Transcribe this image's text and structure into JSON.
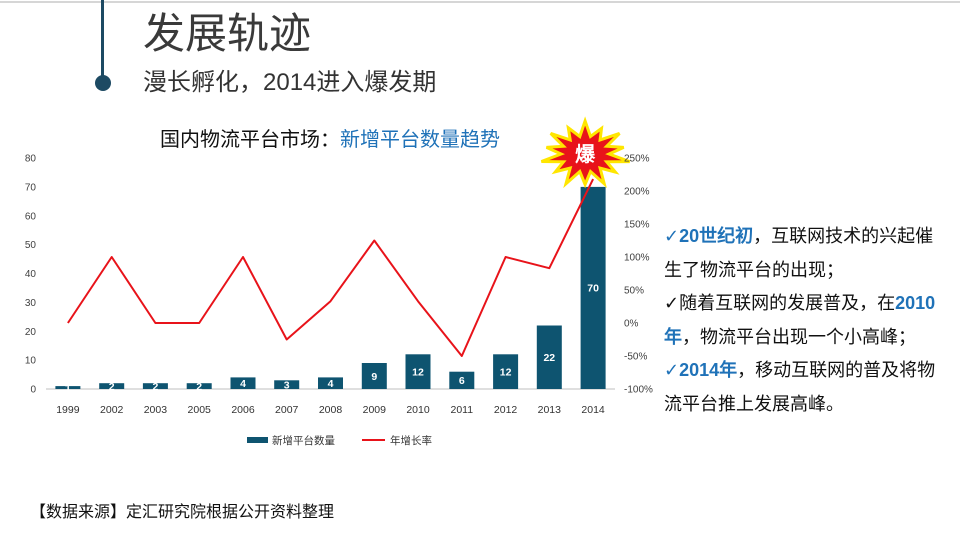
{
  "slide": {
    "title": "发展轨迹",
    "subtitle": "漫长孵化，2014进入爆发期",
    "source": "【数据来源】定汇研究院根据公开资料整理"
  },
  "colors": {
    "accent": "#1f72b8",
    "navy": "#1d4a63"
  },
  "chart_data": {
    "type": "bar",
    "title": {
      "prefix": "国内物流平台市场：",
      "highlight": "新增平台数量趋势"
    },
    "xlabel": "",
    "ylabel": "",
    "categories": [
      "1999",
      "2002",
      "2003",
      "2005",
      "2006",
      "2007",
      "2008",
      "2009",
      "2010",
      "2011",
      "2012",
      "2013",
      "2014"
    ],
    "series": [
      {
        "name": "新增平台数量",
        "type": "bar",
        "axis": "left",
        "color": "#0e5470",
        "values": [
          1,
          2,
          2,
          2,
          4,
          3,
          4,
          9,
          12,
          6,
          12,
          22,
          70
        ]
      },
      {
        "name": "年增长率",
        "type": "line",
        "axis": "right",
        "unit": "%",
        "color": "#e8131a",
        "values": [
          0,
          100,
          0,
          0,
          100,
          -25,
          33,
          125,
          33,
          -50,
          100,
          83,
          218
        ]
      }
    ],
    "y_left": {
      "min": 0,
      "max": 80,
      "ticks": [
        "0",
        "10",
        "20",
        "30",
        "40",
        "50",
        "60",
        "70",
        "80"
      ]
    },
    "y_right": {
      "min": -100,
      "max": 250,
      "ticks": [
        "-100%",
        "-50%",
        "0%",
        "50%",
        "100%",
        "150%",
        "200%",
        "250%"
      ]
    },
    "grid": false,
    "legend_position": "bottom",
    "data_label_position": "center",
    "callout": {
      "text": "爆",
      "category": "2014",
      "fill": "#e8131a",
      "stroke": "#ffe600"
    }
  },
  "notes": [
    {
      "segments": [
        {
          "text": "✓20世纪初",
          "highlight": true
        },
        {
          "text": "，互联网技术的兴起催生了物流平台的出现；",
          "highlight": false
        }
      ]
    },
    {
      "segments": [
        {
          "text": "✓随着互联网的发展普及，在",
          "highlight": false
        },
        {
          "text": "2010年",
          "highlight": true
        },
        {
          "text": "，物流平台出现一个小高峰；",
          "highlight": false
        }
      ]
    },
    {
      "segments": [
        {
          "text": "✓2014年",
          "highlight": true
        },
        {
          "text": "，移动互联网的普及将物流平台推上发展高峰。",
          "highlight": false
        }
      ]
    }
  ]
}
